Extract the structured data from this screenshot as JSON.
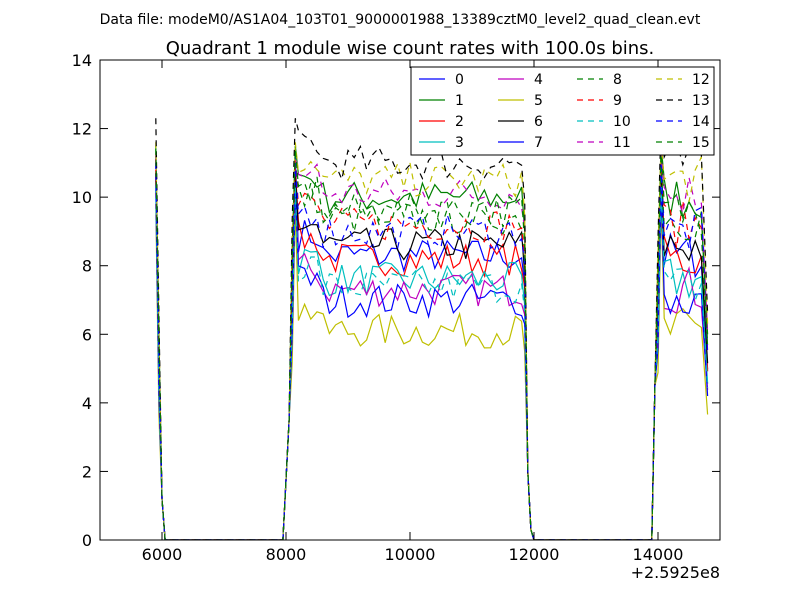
{
  "chart_data": {
    "type": "line",
    "suptitle": "Data file: modeM0/AS1A04_103T01_9000001988_13389cztM0_level2_quad_clean.evt",
    "title": "Quadrant 1 module wise count rates with 100.0s bins.",
    "xlabel": "",
    "ylabel": "",
    "x_offset_label": "+2.5925e8",
    "xlim": [
      5000,
      15000
    ],
    "ylim": [
      0,
      14
    ],
    "x_ticks": [
      6000,
      8000,
      10000,
      12000,
      14000
    ],
    "y_ticks": [
      0,
      2,
      4,
      6,
      8,
      10,
      12,
      14
    ],
    "grid": false,
    "legend_position": "top-right",
    "legend_columns": 4,
    "segments": [
      {
        "start": 5880,
        "on_end": 5900,
        "end": 6100
      },
      {
        "start": 7980,
        "on_end": 8180,
        "end": 11880
      },
      {
        "start": 11780,
        "on_end": 11880,
        "end": 12080
      },
      {
        "start": 13880,
        "on_end": 14080,
        "end": 14880
      }
    ],
    "series": [
      {
        "name": "0",
        "color": "#0000ff",
        "dash": "solid",
        "level": 8.3,
        "spike": 11.2
      },
      {
        "name": "1",
        "color": "#008000",
        "dash": "solid",
        "level": 10.0,
        "spike": 11.5
      },
      {
        "name": "2",
        "color": "#ff0000",
        "dash": "solid",
        "level": 8.2,
        "spike": 10.8
      },
      {
        "name": "3",
        "color": "#00bfbf",
        "dash": "solid",
        "level": 7.6,
        "spike": 10.5
      },
      {
        "name": "4",
        "color": "#bf00bf",
        "dash": "solid",
        "level": 7.3,
        "spike": 10.6
      },
      {
        "name": "5",
        "color": "#bfbf00",
        "dash": "solid",
        "level": 6.1,
        "spike": 9.8
      },
      {
        "name": "6",
        "color": "#000000",
        "dash": "solid",
        "level": 8.6,
        "spike": 10.7
      },
      {
        "name": "7",
        "color": "#0000ff",
        "dash": "solid",
        "level": 7.0,
        "spike": 10.2
      },
      {
        "name": "8",
        "color": "#008000",
        "dash": "dashed",
        "level": 9.4,
        "spike": 11.0
      },
      {
        "name": "9",
        "color": "#ff0000",
        "dash": "dashed",
        "level": 9.2,
        "spike": 11.1
      },
      {
        "name": "10",
        "color": "#00bfbf",
        "dash": "dashed",
        "level": 7.4,
        "spike": 10.3
      },
      {
        "name": "11",
        "color": "#bf00bf",
        "dash": "dashed",
        "level": 10.1,
        "spike": 11.3
      },
      {
        "name": "12",
        "color": "#bfbf00",
        "dash": "dashed",
        "level": 10.5,
        "spike": 11.6
      },
      {
        "name": "13",
        "color": "#000000",
        "dash": "dashed",
        "level": 11.0,
        "spike": 12.3
      },
      {
        "name": "14",
        "color": "#0000ff",
        "dash": "dashed",
        "level": 9.0,
        "spike": 11.0
      },
      {
        "name": "15",
        "color": "#008000",
        "dash": "dashed",
        "level": 9.6,
        "spike": 11.4
      }
    ]
  }
}
